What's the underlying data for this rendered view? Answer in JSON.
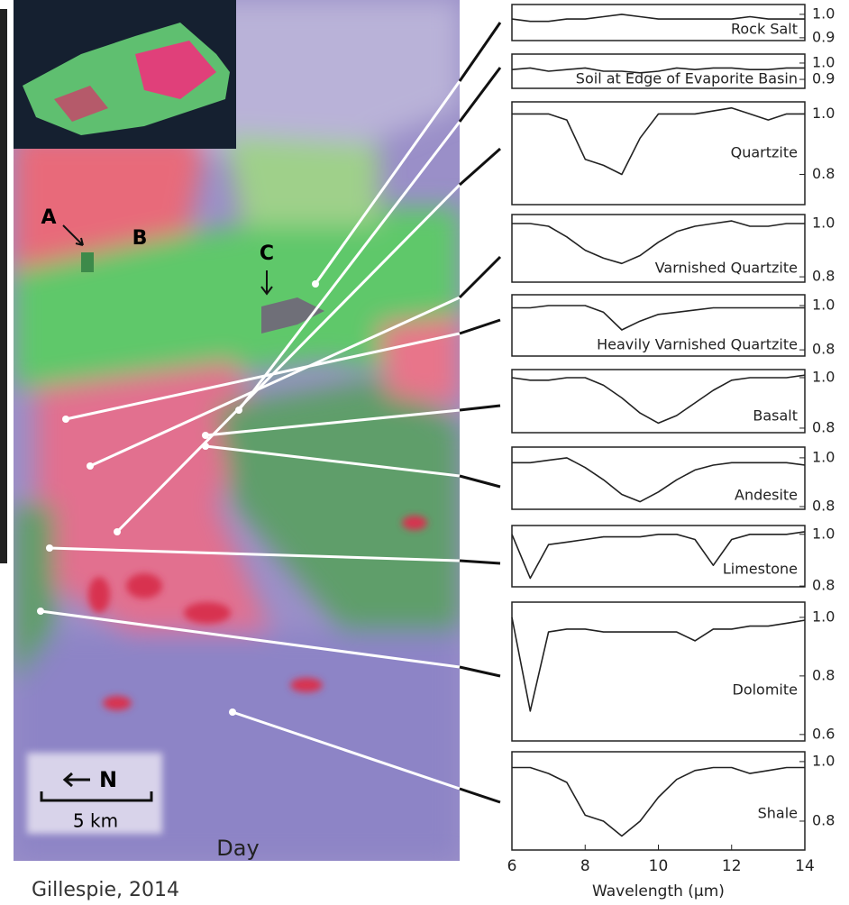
{
  "chart_data": [
    {
      "type": "line",
      "title": "Rock Salt",
      "x": [
        6,
        6.5,
        7,
        7.5,
        8,
        8.5,
        9,
        9.5,
        10,
        10.5,
        11,
        11.5,
        12,
        12.5,
        13,
        13.5,
        14
      ],
      "values": [
        0.98,
        0.97,
        0.97,
        0.98,
        0.98,
        0.99,
        1.0,
        0.99,
        0.98,
        0.98,
        0.98,
        0.98,
        0.98,
        0.99,
        0.98,
        0.98,
        0.98
      ],
      "xlim": [
        6,
        14
      ],
      "ylim": [
        0.888,
        1.042
      ],
      "yticks": [
        {
          "value": 1.0,
          "label": "1.0"
        },
        {
          "value": 0.9,
          "label": "0.9"
        }
      ],
      "color": "#222222"
    },
    {
      "type": "line",
      "title": "Soil at Edge of Evaporite Basin",
      "x": [
        6,
        6.5,
        7,
        7.5,
        8,
        8.5,
        9,
        9.5,
        10,
        10.5,
        11,
        11.5,
        12,
        12.5,
        13,
        13.5,
        14
      ],
      "values": [
        0.96,
        0.97,
        0.95,
        0.96,
        0.97,
        0.95,
        0.95,
        0.94,
        0.95,
        0.97,
        0.96,
        0.97,
        0.97,
        0.96,
        0.96,
        0.97,
        0.97
      ],
      "xlim": [
        6,
        14
      ],
      "ylim": [
        0.845,
        1.055
      ],
      "yticks": [
        {
          "value": 1.0,
          "label": "1.0"
        },
        {
          "value": 0.9,
          "label": "0.9"
        }
      ],
      "color": "#222222"
    },
    {
      "type": "line",
      "title": "Quartzite",
      "x": [
        6,
        6.5,
        7,
        7.5,
        8,
        8.5,
        9,
        9.5,
        10,
        10.5,
        11,
        11.5,
        12,
        12.5,
        13,
        13.5,
        14
      ],
      "values": [
        1.0,
        1.0,
        1.0,
        0.98,
        0.85,
        0.83,
        0.8,
        0.92,
        1.0,
        1.0,
        1.0,
        1.01,
        1.02,
        1.0,
        0.98,
        1.0,
        1.0
      ],
      "xlim": [
        6,
        14
      ],
      "ylim": [
        0.7,
        1.04
      ],
      "yticks": [
        {
          "value": 1.0,
          "label": "1.0"
        },
        {
          "value": 0.8,
          "label": "0.8"
        }
      ],
      "color": "#222222"
    },
    {
      "type": "line",
      "title": "Varnished Quartzite",
      "x": [
        6,
        6.5,
        7,
        7.5,
        8,
        8.5,
        9,
        9.5,
        10,
        10.5,
        11,
        11.5,
        12,
        12.5,
        13,
        13.5,
        14
      ],
      "values": [
        1.0,
        1.0,
        0.99,
        0.95,
        0.9,
        0.87,
        0.85,
        0.88,
        0.93,
        0.97,
        0.99,
        1.0,
        1.01,
        0.99,
        0.99,
        1.0,
        1.0
      ],
      "xlim": [
        6,
        14
      ],
      "ylim": [
        0.78,
        1.034
      ],
      "yticks": [
        {
          "value": 1.0,
          "label": "1.0"
        },
        {
          "value": 0.8,
          "label": "0.8"
        }
      ],
      "color": "#222222"
    },
    {
      "type": "line",
      "title": "Heavily Varnished Quartzite",
      "x": [
        6,
        6.5,
        7,
        7.5,
        8,
        8.5,
        9,
        9.5,
        10,
        10.5,
        11,
        11.5,
        12,
        12.5,
        13,
        13.5,
        14
      ],
      "values": [
        0.99,
        0.99,
        1.0,
        1.0,
        1.0,
        0.97,
        0.89,
        0.93,
        0.96,
        0.97,
        0.98,
        0.99,
        0.99,
        0.99,
        0.99,
        0.99,
        0.99
      ],
      "xlim": [
        6,
        14
      ],
      "ylim": [
        0.772,
        1.049
      ],
      "yticks": [
        {
          "value": 1.0,
          "label": "1.0"
        },
        {
          "value": 0.8,
          "label": "0.8"
        }
      ],
      "color": "#222222"
    },
    {
      "type": "line",
      "title": "Basalt",
      "x": [
        6,
        6.5,
        7,
        7.5,
        8,
        8.5,
        9,
        9.5,
        10,
        10.5,
        11,
        11.5,
        12,
        12.5,
        13,
        13.5,
        14
      ],
      "values": [
        1.0,
        0.99,
        0.99,
        1.0,
        1.0,
        0.97,
        0.92,
        0.86,
        0.82,
        0.85,
        0.9,
        0.95,
        0.99,
        1.0,
        1.0,
        1.0,
        1.01
      ],
      "xlim": [
        6,
        14
      ],
      "ylim": [
        0.782,
        1.032
      ],
      "yticks": [
        {
          "value": 1.0,
          "label": "1.0"
        },
        {
          "value": 0.8,
          "label": "0.8"
        }
      ],
      "color": "#222222"
    },
    {
      "type": "line",
      "title": "Andesite",
      "x": [
        6,
        6.5,
        7,
        7.5,
        8,
        8.5,
        9,
        9.5,
        10,
        10.5,
        11,
        11.5,
        12,
        12.5,
        13,
        13.5,
        14
      ],
      "values": [
        0.98,
        0.98,
        0.99,
        1.0,
        0.96,
        0.91,
        0.85,
        0.82,
        0.86,
        0.91,
        0.95,
        0.97,
        0.98,
        0.98,
        0.98,
        0.98,
        0.97
      ],
      "xlim": [
        6,
        14
      ],
      "ylim": [
        0.789,
        1.044
      ],
      "yticks": [
        {
          "value": 1.0,
          "label": "1.0"
        },
        {
          "value": 0.8,
          "label": "0.8"
        }
      ],
      "color": "#222222"
    },
    {
      "type": "line",
      "title": "Limestone",
      "x": [
        6,
        6.5,
        7,
        7.5,
        8,
        8.5,
        9,
        9.5,
        10,
        10.5,
        11,
        11.5,
        12,
        12.5,
        13,
        13.5,
        14
      ],
      "values": [
        1.0,
        0.83,
        0.96,
        0.97,
        0.98,
        0.99,
        0.99,
        0.99,
        1.0,
        1.0,
        0.98,
        0.88,
        0.98,
        1.0,
        1.0,
        1.0,
        1.01
      ],
      "xlim": [
        6,
        14
      ],
      "ylim": [
        0.797,
        1.034
      ],
      "yticks": [
        {
          "value": 1.0,
          "label": "1.0"
        },
        {
          "value": 0.8,
          "label": "0.8"
        }
      ],
      "color": "#222222"
    },
    {
      "type": "line",
      "title": "Dolomite",
      "x": [
        6,
        6.5,
        7,
        7.5,
        8,
        8.5,
        9,
        9.5,
        10,
        10.5,
        11,
        11.5,
        12,
        12.5,
        13,
        13.5,
        14
      ],
      "values": [
        1.0,
        0.68,
        0.95,
        0.96,
        0.96,
        0.95,
        0.95,
        0.95,
        0.95,
        0.95,
        0.92,
        0.96,
        0.96,
        0.97,
        0.97,
        0.98,
        0.99
      ],
      "xlim": [
        6,
        14
      ],
      "ylim": [
        0.578,
        1.052
      ],
      "yticks": [
        {
          "value": 1.0,
          "label": "1.0"
        },
        {
          "value": 0.8,
          "label": "0.8"
        },
        {
          "value": 0.6,
          "label": "0.6"
        }
      ],
      "color": "#222222"
    },
    {
      "type": "line",
      "title": "Shale",
      "x": [
        6,
        6.5,
        7,
        7.5,
        8,
        8.5,
        9,
        9.5,
        10,
        10.5,
        11,
        11.5,
        12,
        12.5,
        13,
        13.5,
        14
      ],
      "values": [
        0.98,
        0.98,
        0.96,
        0.93,
        0.82,
        0.8,
        0.75,
        0.8,
        0.88,
        0.94,
        0.97,
        0.98,
        0.98,
        0.96,
        0.97,
        0.98,
        0.98
      ],
      "xlim": [
        6,
        14
      ],
      "ylim": [
        0.703,
        1.033
      ],
      "yticks": [
        {
          "value": 1.0,
          "label": "1.0"
        },
        {
          "value": 0.8,
          "label": "0.8"
        }
      ],
      "xticks": [
        6,
        8,
        10,
        12,
        14
      ],
      "xlabel": "Wavelength (μm)",
      "color": "#222222"
    }
  ],
  "image_labels": {
    "a": "A",
    "b": "B",
    "c": "C",
    "north": "N",
    "scale": "5 km",
    "mode": "Day"
  },
  "credit": "Gillespie, 2014"
}
